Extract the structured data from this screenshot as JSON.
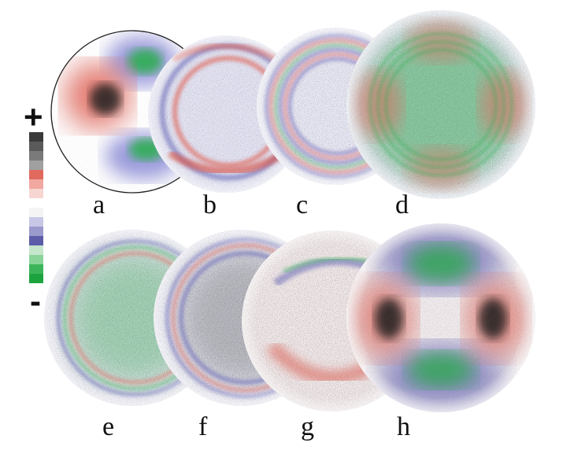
{
  "figure": {
    "panels": [
      {
        "label": "a"
      },
      {
        "label": "b"
      },
      {
        "label": "c"
      },
      {
        "label": "d"
      },
      {
        "label": "e"
      },
      {
        "label": "f"
      },
      {
        "label": "g"
      },
      {
        "label": "h"
      }
    ],
    "colorbar": {
      "plus_label": "+",
      "minus_label": "-",
      "colors": [
        "#3a3a3a",
        "#5a5a5a",
        "#7a7a7a",
        "#a0a0a0",
        "#e06a5e",
        "#f0a8a0",
        "#f7d6d2",
        "#ffffff",
        "#f4f4f4",
        "#c8c8e6",
        "#9a9acc",
        "#5c5ca8",
        "#c6e6cc",
        "#8ad49a",
        "#3cb55a",
        "#1ea43e"
      ]
    },
    "colors": {
      "positive_strong": "#1c1c1c",
      "positive_mid": "#d9584b",
      "negative_mid": "#5c5cb0",
      "negative_strong": "#22a848"
    }
  }
}
